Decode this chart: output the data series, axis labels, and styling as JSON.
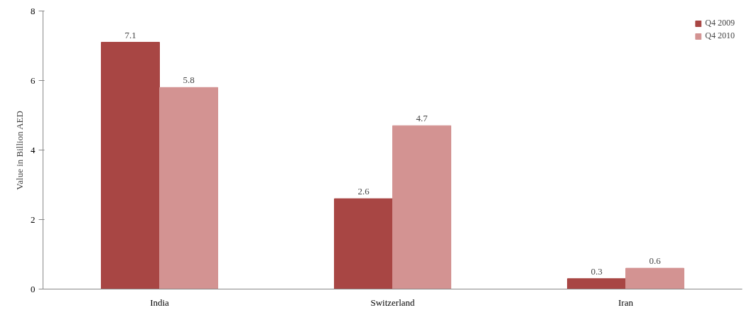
{
  "chart_data": {
    "type": "bar",
    "ylabel": "Value in Billion AED",
    "categories": [
      "India",
      "Switzerland",
      "Iran"
    ],
    "series": [
      {
        "name": "Q4 2009",
        "color": "#a84644",
        "values": [
          7.1,
          2.6,
          0.3
        ]
      },
      {
        "name": "Q4 2010",
        "color": "#d39392",
        "values": [
          5.8,
          4.7,
          0.6
        ]
      }
    ],
    "ylim": [
      0,
      8
    ],
    "yticks": [
      0,
      2,
      4,
      6,
      8
    ],
    "grid": false,
    "legend": "top right",
    "data_labels": true
  }
}
